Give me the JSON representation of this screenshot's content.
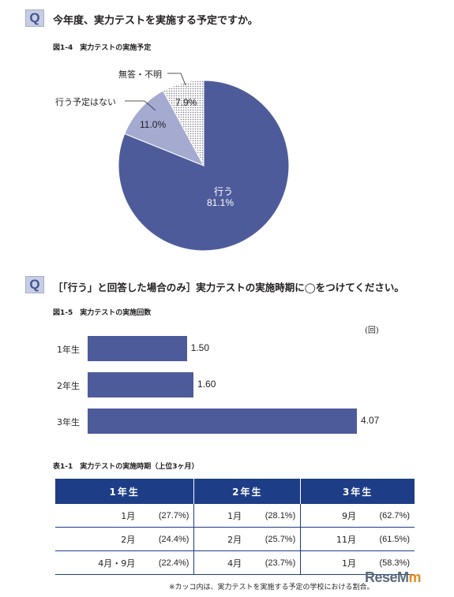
{
  "question1": {
    "badge": "Q",
    "text": "今年度、実力テストを実施する予定ですか。"
  },
  "figure1": {
    "title": "図1-4　実力テストの実施予定"
  },
  "question2": {
    "badge": "Q",
    "text": "［「行う」と回答した場合のみ］実力テストの実施時期に◯をつけてください。"
  },
  "figure2": {
    "title": "図1-5　実力テストの実施回数",
    "unit": "(回)"
  },
  "chart_data": [
    {
      "type": "pie",
      "title": "図1-4　実力テストの実施予定",
      "labels": [
        "行う",
        "行う予定はない",
        "無答・不明"
      ],
      "values": [
        81.1,
        11.0,
        7.9
      ],
      "value_labels": [
        "81.1%",
        "11.0%",
        "7.9%"
      ],
      "colors": [
        "#4e5b9b",
        "#a4aad0",
        "#e8e8ec"
      ]
    },
    {
      "type": "bar",
      "orientation": "horizontal",
      "title": "図1-5　実力テストの実施回数",
      "unit": "(回)",
      "categories": [
        "1年生",
        "2年生",
        "3年生"
      ],
      "values": [
        1.5,
        1.6,
        4.07
      ],
      "value_labels": [
        "1.50",
        "1.60",
        "4.07"
      ],
      "xlim": [
        0,
        4.07
      ],
      "color": "#4e5b9b"
    }
  ],
  "table": {
    "title": "表1-1　実力テストの実施時期（上位3ヶ月）",
    "headers": [
      "1年生",
      "2年生",
      "3年生"
    ],
    "rows": [
      [
        [
          "1月",
          "(27.7%)"
        ],
        [
          "1月",
          "(28.1%)"
        ],
        [
          "9月",
          "(62.7%)"
        ]
      ],
      [
        [
          "2月",
          "(24.4%)"
        ],
        [
          "2月",
          "(25.7%)"
        ],
        [
          "11月",
          "(61.5%)"
        ]
      ],
      [
        [
          "4月・9月",
          "(22.4%)"
        ],
        [
          "4月",
          "(23.7%)"
        ],
        [
          "1月",
          "(58.3%)"
        ]
      ]
    ]
  },
  "footnote": "※カッコ内は、実力テストを実施する予定の学校における割合。",
  "logo": {
    "part1": "Rese",
    "part2": "M",
    "part3": "m"
  }
}
